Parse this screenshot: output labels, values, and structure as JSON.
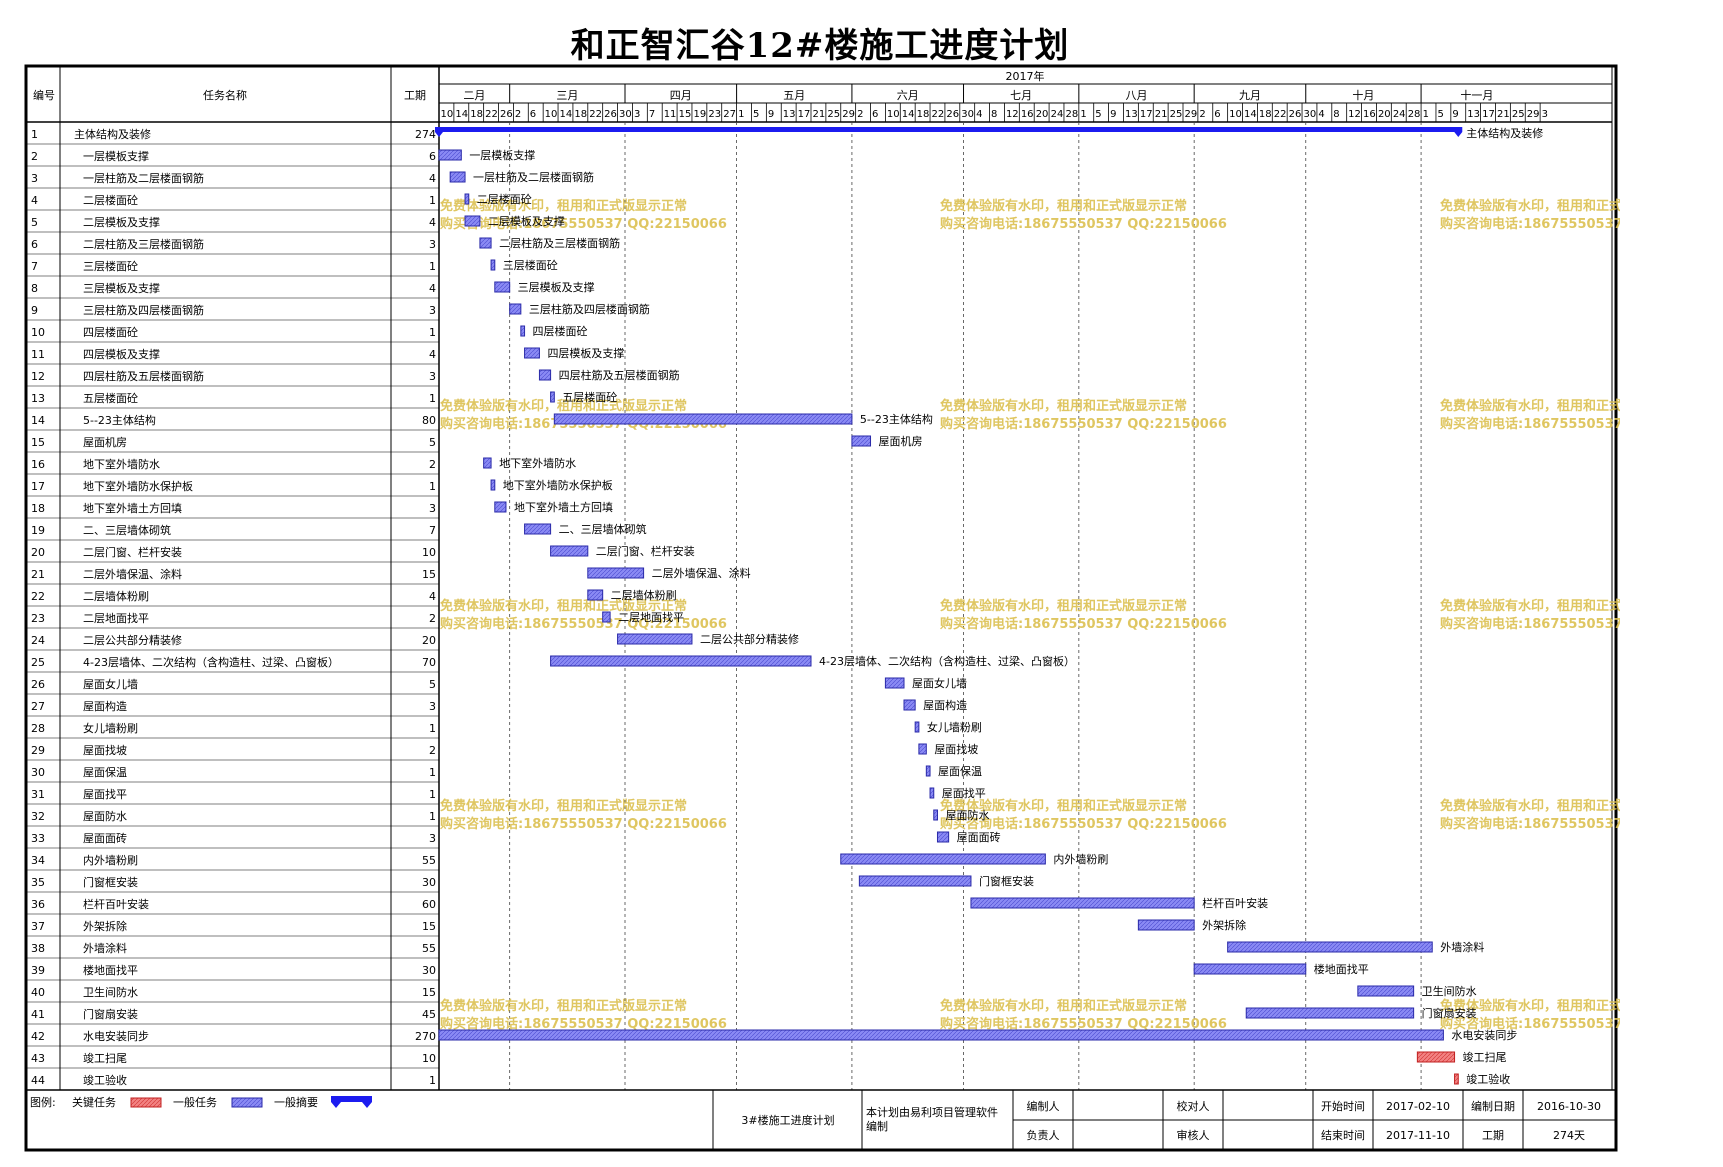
{
  "title": "和正智汇谷12#楼施工进度计划",
  "header": {
    "col_id": "编号",
    "col_name": "任务名称",
    "col_duration": "工期",
    "year_label": "2017年",
    "months": [
      "二月",
      "三月",
      "四月",
      "五月",
      "六月",
      "七月",
      "八月",
      "九月",
      "十月",
      "十一月"
    ],
    "day_ticks": [
      "10",
      "14",
      "18",
      "22",
      "26",
      "2",
      "6",
      "10",
      "14",
      "18",
      "22",
      "26",
      "30",
      "3",
      "7",
      "11",
      "15",
      "19",
      "23",
      "27",
      "1",
      "5",
      "9",
      "13",
      "17",
      "21",
      "25",
      "29",
      "2",
      "6",
      "10",
      "14",
      "18",
      "22",
      "26",
      "30",
      "4",
      "8",
      "12",
      "16",
      "20",
      "24",
      "28",
      "1",
      "5",
      "9",
      "13",
      "17",
      "21",
      "25",
      "29",
      "2",
      "6",
      "10",
      "14",
      "18",
      "22",
      "26",
      "30",
      "4",
      "8",
      "12",
      "16",
      "20",
      "24",
      "28",
      "1",
      "5",
      "9",
      "13",
      "17",
      "21",
      "25",
      "29",
      "3"
    ]
  },
  "chart_data": {
    "type": "gantt",
    "title": "和正智汇谷12#楼施工进度计划",
    "x_axis": {
      "start": "2017-02-10",
      "end": "2017-11-30",
      "unit": "day",
      "year_label": "2017年"
    },
    "tasks": [
      {
        "id": "1",
        "name": "主体结构及装修",
        "duration": "274",
        "start": "2017-02-10",
        "end": "2017-11-10",
        "kind": "summary",
        "label": "主体结构及装修",
        "indent": 0
      },
      {
        "id": "2",
        "name": "一层模板支撑",
        "duration": "6",
        "start": "2017-02-10",
        "end": "2017-02-15",
        "kind": "normal",
        "label": "一层模板支撑",
        "indent": 1
      },
      {
        "id": "3",
        "name": "一层柱筋及二层楼面钢筋",
        "duration": "4",
        "start": "2017-02-13",
        "end": "2017-02-16",
        "kind": "normal",
        "label": "一层柱筋及二层楼面钢筋",
        "indent": 1
      },
      {
        "id": "4",
        "name": "二层楼面砼",
        "duration": "1",
        "start": "2017-02-17",
        "end": "2017-02-17",
        "kind": "normal",
        "label": "二层楼面砼",
        "indent": 1
      },
      {
        "id": "5",
        "name": "二层模板及支撑",
        "duration": "4",
        "start": "2017-02-17",
        "end": "2017-02-20",
        "kind": "normal",
        "label": "二层模板及支撑",
        "indent": 1
      },
      {
        "id": "6",
        "name": "二层柱筋及三层楼面钢筋",
        "duration": "3",
        "start": "2017-02-21",
        "end": "2017-02-23",
        "kind": "normal",
        "label": "二层柱筋及三层楼面钢筋",
        "indent": 1
      },
      {
        "id": "7",
        "name": "三层楼面砼",
        "duration": "1",
        "start": "2017-02-24",
        "end": "2017-02-24",
        "kind": "normal",
        "label": "三层楼面砼",
        "indent": 1
      },
      {
        "id": "8",
        "name": "三层模板及支撑",
        "duration": "4",
        "start": "2017-02-25",
        "end": "2017-02-28",
        "kind": "normal",
        "label": "三层模板及支撑",
        "indent": 1
      },
      {
        "id": "9",
        "name": "三层柱筋及四层楼面钢筋",
        "duration": "3",
        "start": "2017-03-01",
        "end": "2017-03-03",
        "kind": "normal",
        "label": "三层柱筋及四层楼面钢筋",
        "indent": 1
      },
      {
        "id": "10",
        "name": "四层楼面砼",
        "duration": "1",
        "start": "2017-03-04",
        "end": "2017-03-04",
        "kind": "normal",
        "label": "四层楼面砼",
        "indent": 1
      },
      {
        "id": "11",
        "name": "四层模板及支撑",
        "duration": "4",
        "start": "2017-03-05",
        "end": "2017-03-08",
        "kind": "normal",
        "label": "四层模板及支撑",
        "indent": 1
      },
      {
        "id": "12",
        "name": "四层柱筋及五层楼面钢筋",
        "duration": "3",
        "start": "2017-03-09",
        "end": "2017-03-11",
        "kind": "normal",
        "label": "四层柱筋及五层楼面钢筋",
        "indent": 1
      },
      {
        "id": "13",
        "name": "五层楼面砼",
        "duration": "1",
        "start": "2017-03-12",
        "end": "2017-03-12",
        "kind": "normal",
        "label": "五层楼面砼",
        "indent": 1
      },
      {
        "id": "14",
        "name": "5--23主体结构",
        "duration": "80",
        "start": "2017-03-13",
        "end": "2017-05-31",
        "kind": "normal",
        "label": "5--23主体结构",
        "indent": 1
      },
      {
        "id": "15",
        "name": "屋面机房",
        "duration": "5",
        "start": "2017-06-01",
        "end": "2017-06-05",
        "kind": "normal",
        "label": "屋面机房",
        "indent": 1
      },
      {
        "id": "16",
        "name": "地下室外墙防水",
        "duration": "2",
        "start": "2017-02-22",
        "end": "2017-02-23",
        "kind": "normal",
        "label": "地下室外墙防水",
        "indent": 1
      },
      {
        "id": "17",
        "name": "地下室外墙防水保护板",
        "duration": "1",
        "start": "2017-02-24",
        "end": "2017-02-24",
        "kind": "normal",
        "label": "地下室外墙防水保护板",
        "indent": 1
      },
      {
        "id": "18",
        "name": "地下室外墙土方回填",
        "duration": "3",
        "start": "2017-02-25",
        "end": "2017-02-27",
        "kind": "normal",
        "label": "地下室外墙土方回填",
        "indent": 1
      },
      {
        "id": "19",
        "name": "二、三层墙体砌筑",
        "duration": "7",
        "start": "2017-03-05",
        "end": "2017-03-11",
        "kind": "normal",
        "label": "二、三层墙体砌筑",
        "indent": 1
      },
      {
        "id": "20",
        "name": "二层门窗、栏杆安装",
        "duration": "10",
        "start": "2017-03-12",
        "end": "2017-03-21",
        "kind": "normal",
        "label": "二层门窗、栏杆安装",
        "indent": 1
      },
      {
        "id": "21",
        "name": "二层外墙保温、涂料",
        "duration": "15",
        "start": "2017-03-22",
        "end": "2017-04-05",
        "kind": "normal",
        "label": "二层外墙保温、涂料",
        "indent": 1
      },
      {
        "id": "22",
        "name": "二层墙体粉刷",
        "duration": "4",
        "start": "2017-03-22",
        "end": "2017-03-25",
        "kind": "normal",
        "label": "二层墙体粉刷",
        "indent": 1
      },
      {
        "id": "23",
        "name": "二层地面找平",
        "duration": "2",
        "start": "2017-03-26",
        "end": "2017-03-27",
        "kind": "normal",
        "label": "二层地面找平",
        "indent": 1
      },
      {
        "id": "24",
        "name": "二层公共部分精装修",
        "duration": "20",
        "start": "2017-03-30",
        "end": "2017-04-18",
        "kind": "normal",
        "label": "二层公共部分精装修",
        "indent": 1
      },
      {
        "id": "25",
        "name": "4-23层墙体、二次结构（含构造柱、过梁、凸窗板）",
        "duration": "70",
        "start": "2017-03-12",
        "end": "2017-05-20",
        "kind": "normal",
        "label": "4-23层墙体、二次结构（含构造柱、过梁、凸窗板）",
        "indent": 1
      },
      {
        "id": "26",
        "name": "屋面女儿墙",
        "duration": "5",
        "start": "2017-06-10",
        "end": "2017-06-14",
        "kind": "normal",
        "label": "屋面女儿墙",
        "indent": 1
      },
      {
        "id": "27",
        "name": "屋面构造",
        "duration": "3",
        "start": "2017-06-15",
        "end": "2017-06-17",
        "kind": "normal",
        "label": "屋面构造",
        "indent": 1
      },
      {
        "id": "28",
        "name": "女儿墙粉刷",
        "duration": "1",
        "start": "2017-06-18",
        "end": "2017-06-18",
        "kind": "normal",
        "label": "女儿墙粉刷",
        "indent": 1
      },
      {
        "id": "29",
        "name": "屋面找坡",
        "duration": "2",
        "start": "2017-06-19",
        "end": "2017-06-20",
        "kind": "normal",
        "label": "屋面找坡",
        "indent": 1
      },
      {
        "id": "30",
        "name": "屋面保温",
        "duration": "1",
        "start": "2017-06-21",
        "end": "2017-06-21",
        "kind": "normal",
        "label": "屋面保温",
        "indent": 1
      },
      {
        "id": "31",
        "name": "屋面找平",
        "duration": "1",
        "start": "2017-06-22",
        "end": "2017-06-22",
        "kind": "normal",
        "label": "屋面找平",
        "indent": 1
      },
      {
        "id": "32",
        "name": "屋面防水",
        "duration": "1",
        "start": "2017-06-23",
        "end": "2017-06-23",
        "kind": "normal",
        "label": "屋面防水",
        "indent": 1
      },
      {
        "id": "33",
        "name": "屋面面砖",
        "duration": "3",
        "start": "2017-06-24",
        "end": "2017-06-26",
        "kind": "normal",
        "label": "屋面面砖",
        "indent": 1
      },
      {
        "id": "34",
        "name": "内外墙粉刷",
        "duration": "55",
        "start": "2017-05-29",
        "end": "2017-07-22",
        "kind": "normal",
        "label": "内外墙粉刷",
        "indent": 1
      },
      {
        "id": "35",
        "name": "门窗框安装",
        "duration": "30",
        "start": "2017-06-03",
        "end": "2017-07-02",
        "kind": "normal",
        "label": "门窗框安装",
        "indent": 1
      },
      {
        "id": "36",
        "name": "栏杆百叶安装",
        "duration": "60",
        "start": "2017-07-03",
        "end": "2017-08-31",
        "kind": "normal",
        "label": "栏杆百叶安装",
        "indent": 1
      },
      {
        "id": "37",
        "name": "外架拆除",
        "duration": "15",
        "start": "2017-08-17",
        "end": "2017-08-31",
        "kind": "normal",
        "label": "外架拆除",
        "indent": 1
      },
      {
        "id": "38",
        "name": "外墙涂料",
        "duration": "55",
        "start": "2017-09-10",
        "end": "2017-11-03",
        "kind": "normal",
        "label": "外墙涂料",
        "indent": 1
      },
      {
        "id": "39",
        "name": "楼地面找平",
        "duration": "30",
        "start": "2017-09-01",
        "end": "2017-09-30",
        "kind": "normal",
        "label": "楼地面找平",
        "indent": 1
      },
      {
        "id": "40",
        "name": "卫生间防水",
        "duration": "15",
        "start": "2017-10-15",
        "end": "2017-10-29",
        "kind": "normal",
        "label": "卫生间防水",
        "indent": 1
      },
      {
        "id": "41",
        "name": "门窗扇安装",
        "duration": "45",
        "start": "2017-09-15",
        "end": "2017-10-29",
        "kind": "normal",
        "label": "门窗扇安装",
        "indent": 1
      },
      {
        "id": "42",
        "name": "水电安装同步",
        "duration": "270",
        "start": "2017-02-10",
        "end": "2017-11-06",
        "kind": "normal",
        "label": "水电安装同步",
        "indent": 1
      },
      {
        "id": "43",
        "name": "竣工扫尾",
        "duration": "10",
        "start": "2017-10-31",
        "end": "2017-11-09",
        "kind": "critical",
        "label": "竣工扫尾",
        "indent": 1
      },
      {
        "id": "44",
        "name": "竣工验收",
        "duration": "1",
        "start": "2017-11-10",
        "end": "2017-11-10",
        "kind": "critical",
        "label": "竣工验收",
        "indent": 1
      }
    ],
    "watermark": {
      "line1": "免费体验版有水印，租用和正式版显示正常",
      "line2": "购买咨询电话:18675550537 QQ:22150066"
    }
  },
  "legend": {
    "label": "图例:",
    "items": [
      {
        "label": "关键任务",
        "kind": "critical"
      },
      {
        "label": "一般任务",
        "kind": "normal"
      },
      {
        "label": "一般摘要",
        "kind": "summary"
      }
    ]
  },
  "footer": {
    "plan_name": "3#楼施工进度计划",
    "software_note_1": "本计划由易利项目管理软件",
    "software_note_2": "编制",
    "editor_label": "编制人",
    "editor_value": "",
    "checker_label": "校对人",
    "checker_value": "",
    "owner_label": "负责人",
    "owner_value": "",
    "reviewer_label": "审核人",
    "reviewer_value": "",
    "start_label": "开始时间",
    "start_value": "2017-02-10",
    "end_label": "结束时间",
    "end_value": "2017-11-10",
    "made_label": "编制日期",
    "made_value": "2016-10-30",
    "duration_label": "工期",
    "duration_value": "274天"
  },
  "colors": {
    "normal_fill": "#7b7bf0",
    "normal_stroke": "#2a2aa8",
    "summary": "#1c1cf0",
    "critical_fill": "#f07070",
    "critical_stroke": "#c02020",
    "watermark": "#dcc050",
    "grid_dash": "#555555",
    "frame": "#000000"
  }
}
